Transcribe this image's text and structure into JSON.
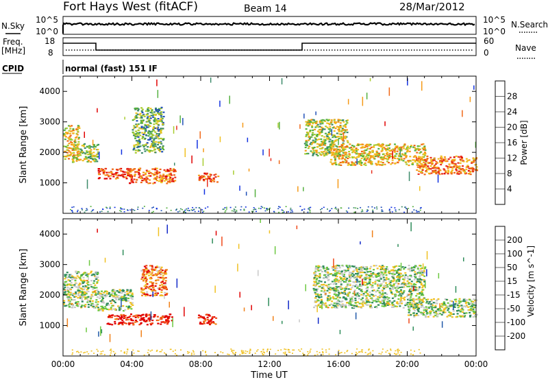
{
  "header": {
    "station": "Fort Hays West (fitACF)",
    "beam": "Beam 14",
    "date": "28/Mar/2012"
  },
  "noise_panel": {
    "left_label": "N.Sky",
    "right_label": "N.Search",
    "tick_top": "10^5",
    "tick_bottom": "10^0"
  },
  "freq_panel": {
    "label_top": "Freq.",
    "label_bottom": "[MHz]",
    "right_label": "Nave",
    "left_ticks": [
      "18",
      "8"
    ],
    "right_ticks": [
      "60",
      "0"
    ]
  },
  "cpid": {
    "label": "CPID",
    "value": "normal (fast) 151 IF"
  },
  "chart_data": [
    {
      "type": "heatmap",
      "panel": "power",
      "ylabel": "Slant Range [km]",
      "ylim": [
        0,
        4500
      ],
      "yticks": [
        1000,
        2000,
        3000,
        4000
      ],
      "xlim": [
        0,
        24
      ],
      "colorbar": {
        "label": "Power [dB]",
        "ticks": [
          "4",
          "8",
          "12",
          "16",
          "20",
          "24",
          "28"
        ],
        "colors": [
          "#1030e0",
          "#2050b8",
          "#3c8a6a",
          "#55b040",
          "#a8cc30",
          "#f0c020",
          "#f59a18",
          "#f06818",
          "#e83020",
          "#e00000"
        ]
      },
      "regions": [
        {
          "t0": 0.0,
          "t1": 0.9,
          "r0": 1800,
          "r1": 2900,
          "level": 0.55
        },
        {
          "t0": 0.5,
          "t1": 2.0,
          "r0": 1700,
          "r1": 2300,
          "level": 0.45
        },
        {
          "t0": 2.0,
          "t1": 4.0,
          "r0": 1150,
          "r1": 1500,
          "level": 0.85
        },
        {
          "t0": 3.8,
          "t1": 6.5,
          "r0": 1000,
          "r1": 1500,
          "level": 0.75
        },
        {
          "t0": 4.0,
          "t1": 5.8,
          "r0": 2000,
          "r1": 3500,
          "level": 0.35
        },
        {
          "t0": 7.8,
          "t1": 9.0,
          "r0": 1050,
          "r1": 1350,
          "level": 0.8
        },
        {
          "t0": 14.0,
          "t1": 16.5,
          "r0": 1900,
          "r1": 3100,
          "level": 0.45
        },
        {
          "t0": 15.5,
          "t1": 21.0,
          "r0": 1600,
          "r1": 2300,
          "level": 0.55
        },
        {
          "t0": 20.5,
          "t1": 24.0,
          "r0": 1300,
          "r1": 1900,
          "level": 0.7
        }
      ]
    },
    {
      "type": "heatmap",
      "panel": "velocity",
      "ylabel": "Slant Range [km]",
      "xlabel": "Time UT",
      "ylim": [
        0,
        4500
      ],
      "yticks": [
        1000,
        2000,
        3000,
        4000
      ],
      "xlim": [
        0,
        24
      ],
      "xticks": [
        "00:00",
        "04:00",
        "08:00",
        "12:00",
        "16:00",
        "20:00",
        "00:00"
      ],
      "colorbar": {
        "label": "Velocity [m s^-1]",
        "ticks": [
          "200",
          "100",
          "50",
          "15",
          "-15",
          "-50",
          "-100",
          "-200"
        ],
        "colors": [
          "#1028c8",
          "#2058a8",
          "#2e8c5a",
          "#6cc840",
          "#c8c8c8",
          "#f0c020",
          "#f08018",
          "#f04818",
          "#e00000"
        ]
      },
      "regions": [
        {
          "t0": 0.0,
          "t1": 2.0,
          "r0": 1600,
          "r1": 2800,
          "level": 0.45
        },
        {
          "t0": 2.0,
          "t1": 4.0,
          "r0": 1500,
          "r1": 2200,
          "level": 0.45
        },
        {
          "t0": 2.5,
          "t1": 6.3,
          "r0": 1050,
          "r1": 1400,
          "level": 0.95
        },
        {
          "t0": 4.5,
          "t1": 6.0,
          "r0": 2000,
          "r1": 3000,
          "level": 0.75
        },
        {
          "t0": 7.8,
          "t1": 8.9,
          "r0": 1050,
          "r1": 1400,
          "level": 0.95
        },
        {
          "t0": 14.5,
          "t1": 21.0,
          "r0": 1600,
          "r1": 3000,
          "level": 0.45
        },
        {
          "t0": 20.0,
          "t1": 24.0,
          "r0": 1300,
          "r1": 1900,
          "level": 0.45
        }
      ]
    }
  ]
}
